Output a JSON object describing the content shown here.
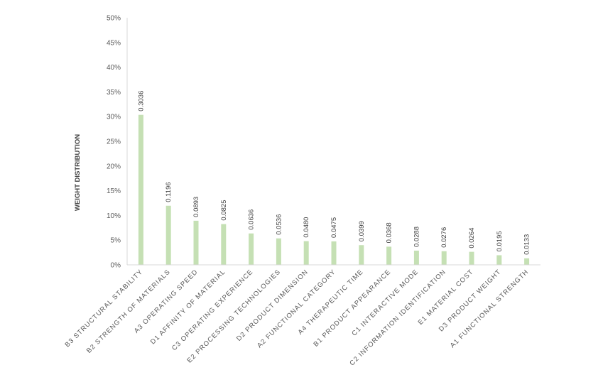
{
  "chart_data": {
    "type": "bar",
    "title": "",
    "xlabel": "",
    "ylabel": "WEIGHT DISTRIBUTION",
    "ylim": [
      0,
      0.5
    ],
    "yticks": [
      "0%",
      "5%",
      "10%",
      "15%",
      "20%",
      "25%",
      "30%",
      "35%",
      "40%",
      "45%",
      "50%"
    ],
    "grid": false,
    "legend": "none",
    "bar_color": "#c5e0b4",
    "categories": [
      "B3  STRUCTURAL STABILITY",
      "B2  STRENGTH OF MATERIALS",
      "A3  OPERATING SPEED",
      "D1 AFFINITY OF MATERIAL",
      "C3  OPERATING EXPERIENCE",
      "E2  PROCESSING TECHNOLOGIES",
      "D2  PRODUCT DIMENSION",
      "A2  FUNCTIONAL CATEGORY",
      "A4  THERAPEUTIC TIME",
      "B1  PRODUCT APPEARANCE",
      "C1  INTERACTIVE MODE",
      "C2  INFORMATION IDENTIFICATION",
      "E1  MATERIAL COST",
      "D3  PRODUCT WEIGHT",
      "A1  FUNCTIONAL STRENGTH"
    ],
    "values": [
      0.3036,
      0.1196,
      0.0893,
      0.0825,
      0.0636,
      0.0536,
      0.048,
      0.0475,
      0.0399,
      0.0368,
      0.0288,
      0.0276,
      0.0264,
      0.0195,
      0.0133
    ],
    "data_labels": [
      "0.3036",
      "0.1196",
      "0.0893",
      "0.0825",
      "0.0636",
      "0.0536",
      "0.0480",
      "0.0475",
      "0.0399",
      "0.0368",
      "0.0288",
      "0.0276",
      "0.0264",
      "0.0195",
      "0.0133"
    ]
  }
}
